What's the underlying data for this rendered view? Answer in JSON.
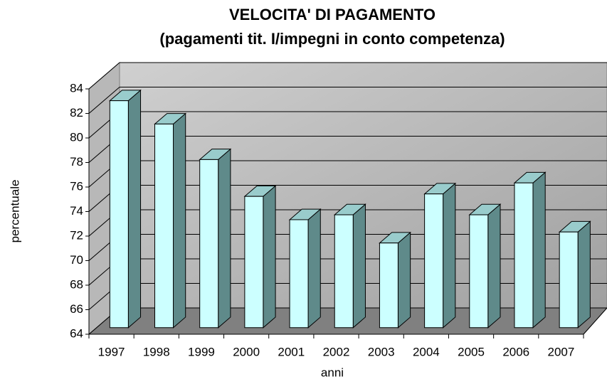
{
  "chart_data": {
    "type": "bar3d",
    "title": "VELOCITA' DI PAGAMENTO",
    "subtitle": "(pagamenti tit. I/impegni in conto competenza)",
    "xlabel": "anni",
    "ylabel": "percentuale",
    "categories": [
      "1997",
      "1998",
      "1999",
      "2000",
      "2001",
      "2002",
      "2003",
      "2004",
      "2005",
      "2006",
      "2007"
    ],
    "values": [
      82.5,
      80.6,
      77.7,
      74.7,
      72.8,
      73.2,
      70.9,
      74.9,
      73.2,
      75.8,
      71.8
    ],
    "color": "#ccffff",
    "ylim": [
      64,
      84
    ],
    "yticks": [
      64,
      66,
      68,
      70,
      72,
      74,
      76,
      78,
      80,
      82,
      84
    ],
    "grid": true
  }
}
